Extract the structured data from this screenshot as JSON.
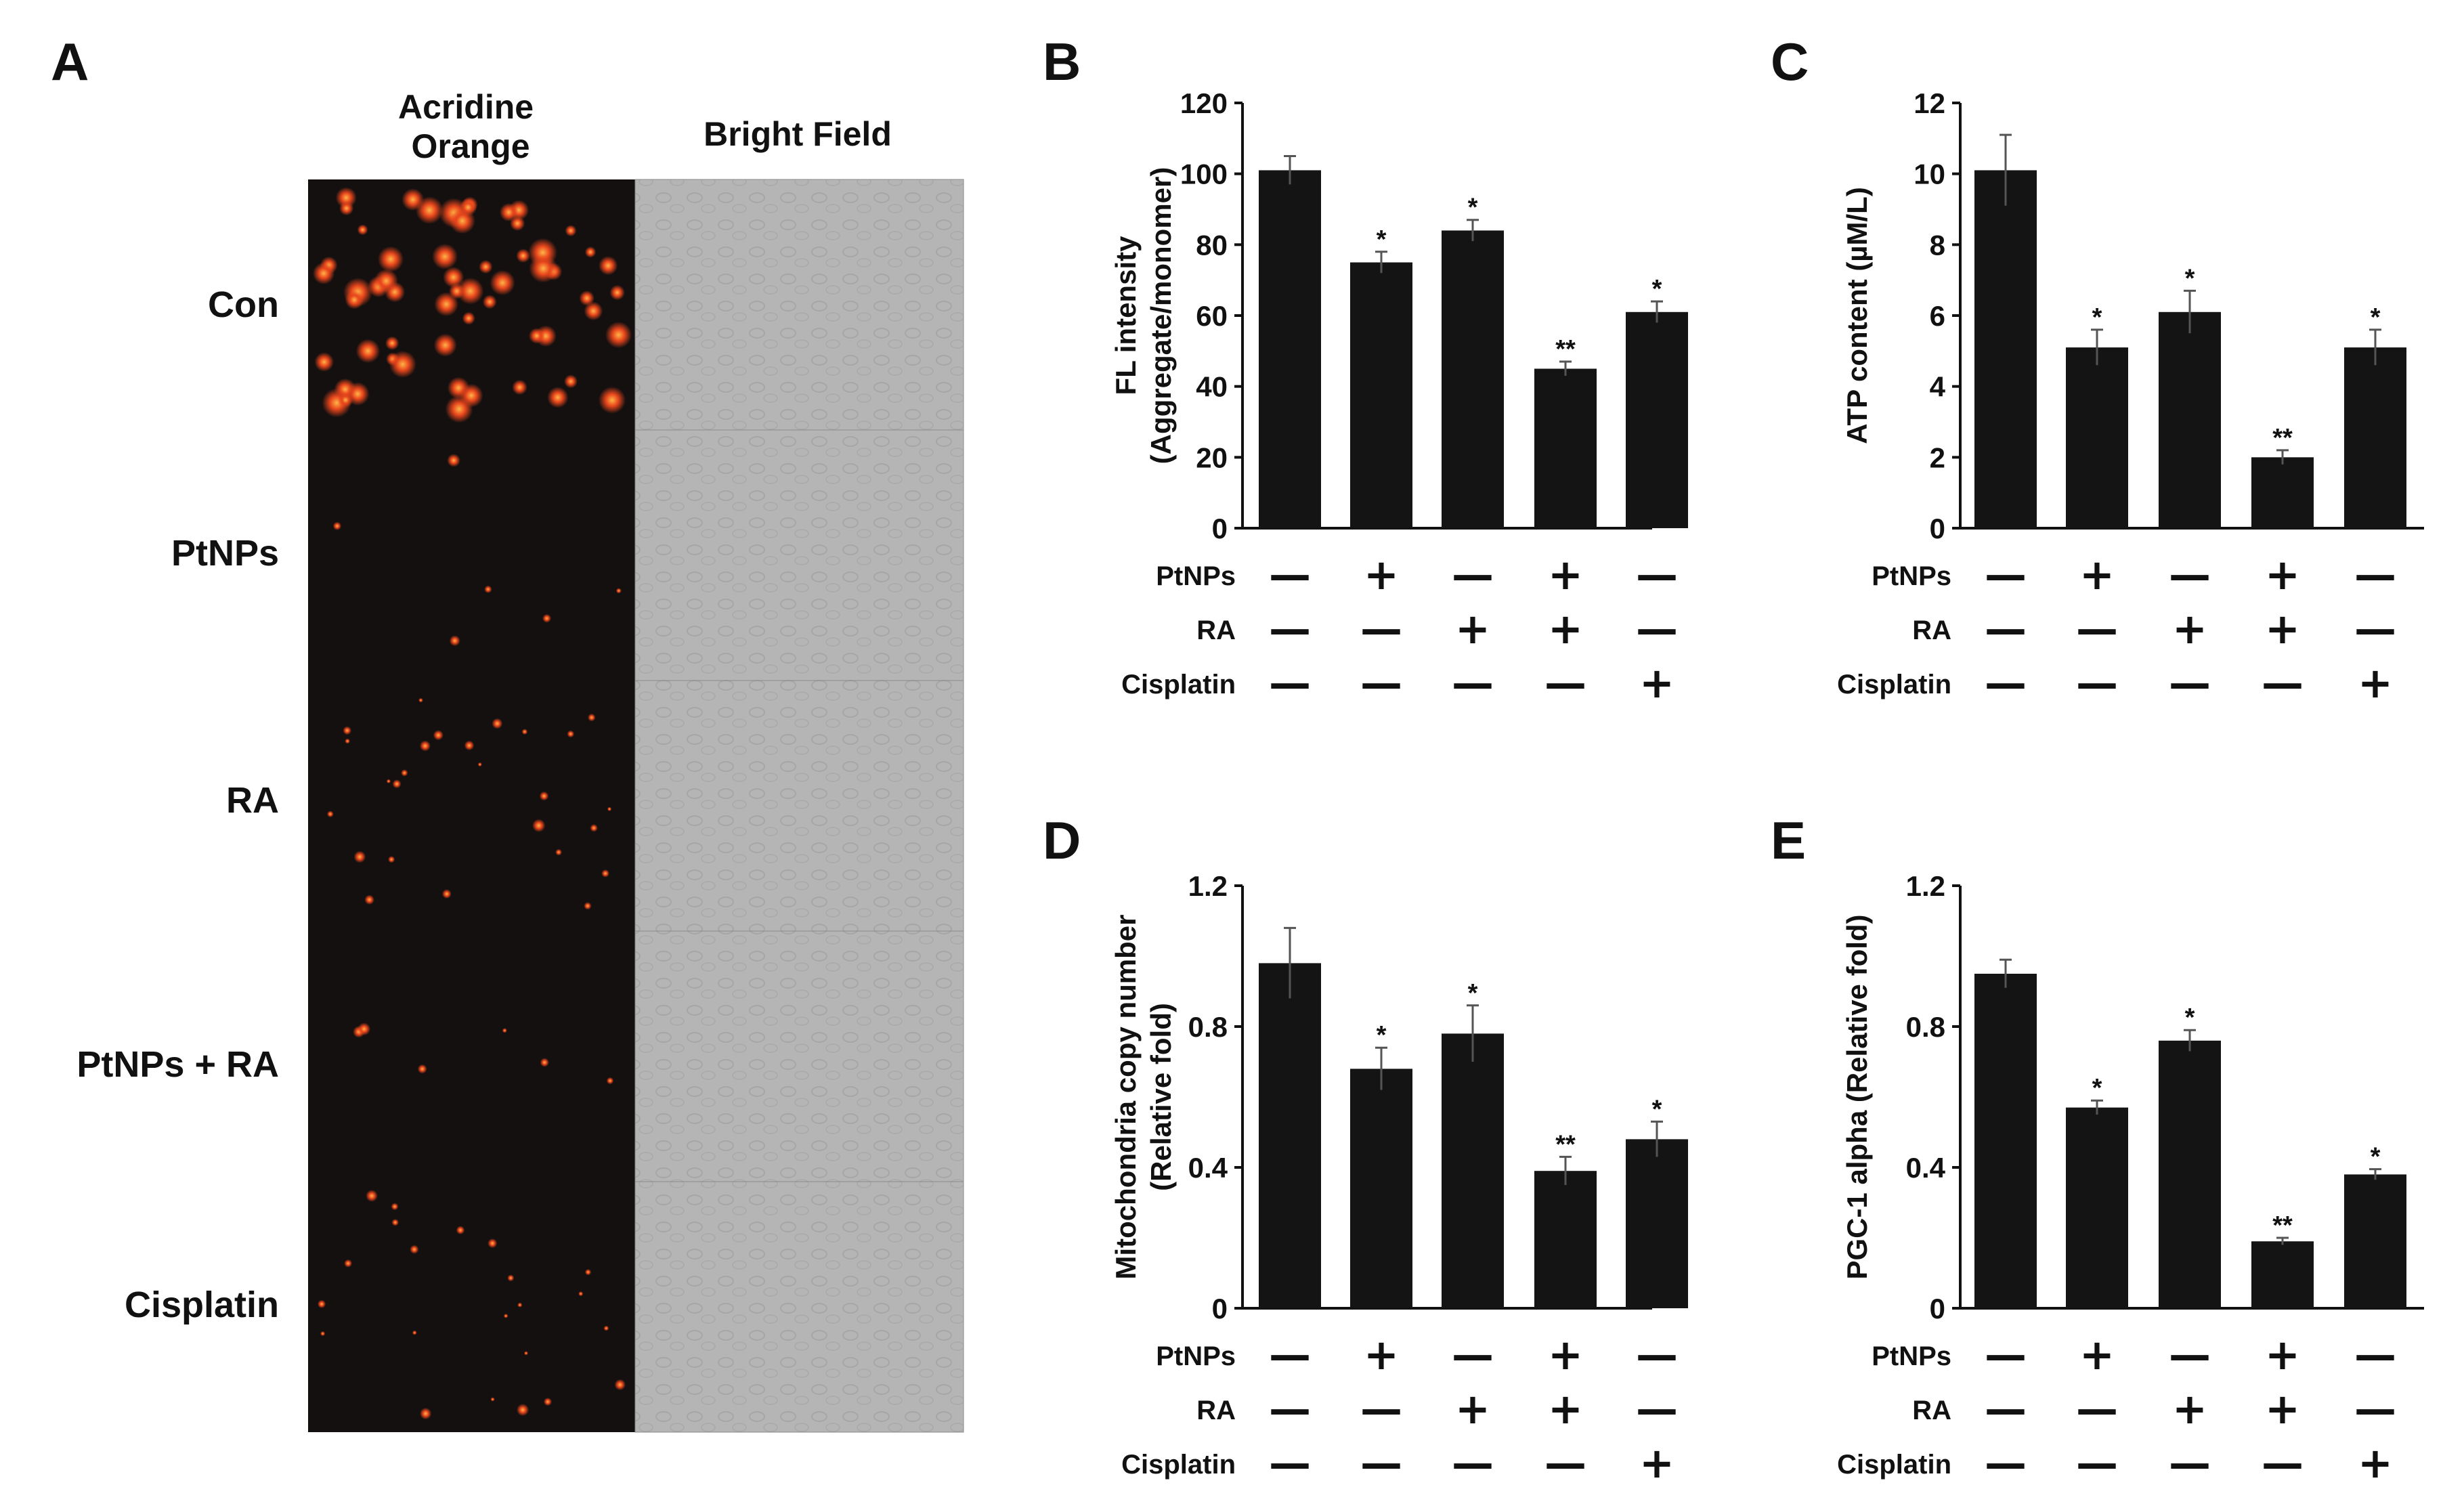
{
  "panel_a": {
    "label": "A",
    "columns": [
      "Acridine Orange",
      "Bright Field"
    ],
    "rows": [
      "Con",
      "PtNPs",
      "RA",
      "PtNPs + RA",
      "Cisplatin"
    ],
    "fluorescence_color": "#e8461c",
    "image_dark_color": "#141010",
    "bright_field_color": "#b5b5b5"
  },
  "treatment_labels": [
    "PtNPs",
    "RA",
    "Cisplatin"
  ],
  "treatment_matrix": [
    [
      "—",
      "+",
      "—",
      "+",
      "—"
    ],
    [
      "—",
      "—",
      "+",
      "+",
      "—"
    ],
    [
      "—",
      "—",
      "—",
      "—",
      "+"
    ]
  ],
  "bar_color": "#141414",
  "chart_data": [
    {
      "panel": "B",
      "type": "bar",
      "ylabel": [
        "FL intensity",
        "(Aggregate/monomer)"
      ],
      "ylim": [
        0,
        120
      ],
      "yticks": [
        0,
        20,
        40,
        60,
        80,
        100,
        120
      ],
      "values": [
        101,
        75,
        84,
        45,
        61
      ],
      "errors": [
        4,
        3,
        3,
        2,
        3
      ],
      "significance": [
        "",
        "*",
        "*",
        "**",
        "*"
      ]
    },
    {
      "panel": "C",
      "type": "bar",
      "ylabel": [
        "ATP content (µM/L)"
      ],
      "ylim": [
        0,
        12
      ],
      "yticks": [
        0,
        2,
        4,
        6,
        8,
        10,
        12
      ],
      "values": [
        10.1,
        5.1,
        6.1,
        2.0,
        5.1
      ],
      "errors": [
        1.0,
        0.5,
        0.6,
        0.2,
        0.5
      ],
      "significance": [
        "",
        "*",
        "*",
        "**",
        "*"
      ]
    },
    {
      "panel": "D",
      "type": "bar",
      "ylabel": [
        "Mitochondria copy number",
        "(Relative fold)"
      ],
      "ylim": [
        0,
        1.2
      ],
      "yticks": [
        0,
        0.4,
        0.8,
        1.2
      ],
      "ytick_labels": [
        "0",
        "0.4",
        "0.8",
        "1.2"
      ],
      "values": [
        0.98,
        0.68,
        0.78,
        0.39,
        0.48
      ],
      "errors": [
        0.1,
        0.06,
        0.08,
        0.04,
        0.05
      ],
      "significance": [
        "",
        "*",
        "*",
        "**",
        "*"
      ]
    },
    {
      "panel": "E",
      "type": "bar",
      "ylabel": [
        "PGC-1 alpha (Relative fold)"
      ],
      "ylim": [
        0,
        1.2
      ],
      "yticks": [
        0,
        0.4,
        0.8,
        1.2
      ],
      "ytick_labels": [
        "0",
        "0.4",
        "0.8",
        "1.2"
      ],
      "values": [
        0.95,
        0.57,
        0.76,
        0.19,
        0.38
      ],
      "errors": [
        0.04,
        0.02,
        0.03,
        0.01,
        0.015
      ],
      "significance": [
        "",
        "*",
        "*",
        "**",
        "*"
      ]
    }
  ]
}
